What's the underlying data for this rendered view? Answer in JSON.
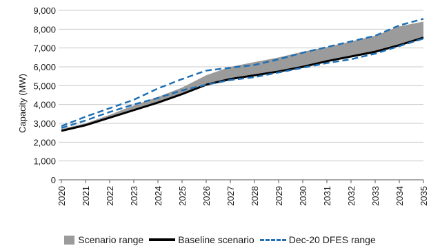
{
  "chart_data": {
    "type": "area",
    "x": [
      "2020",
      "2021",
      "2022",
      "2023",
      "2024",
      "2025",
      "2026",
      "2027",
      "2028",
      "2029",
      "2030",
      "2031",
      "2032",
      "2033",
      "2034",
      "2035"
    ],
    "ylabel": "Capacity (MW)",
    "ylim": [
      0,
      9000
    ],
    "yticks": [
      0,
      1000,
      2000,
      3000,
      4000,
      5000,
      6000,
      7000,
      8000,
      9000
    ],
    "ytick_labels": [
      "0",
      "1,000",
      "2,000",
      "3,000",
      "4,000",
      "5,000",
      "6,000",
      "7,000",
      "8,000",
      "9,000"
    ],
    "grid": "horizontal",
    "legend_position": "bottom",
    "scenario_range": {
      "name": "Scenario range",
      "color": "#9b9b9b",
      "lower": [
        2600,
        2900,
        3300,
        3700,
        4100,
        4550,
        5050,
        5350,
        5550,
        5750,
        6000,
        6300,
        6550,
        6800,
        7150,
        7550
      ],
      "upper": [
        2700,
        3000,
        3450,
        3950,
        4400,
        4900,
        5550,
        6000,
        6250,
        6500,
        6800,
        7050,
        7350,
        7650,
        8150,
        8400
      ]
    },
    "series": [
      {
        "name": "Baseline scenario",
        "style": "solid",
        "color": "#000000",
        "values": [
          2600,
          2900,
          3300,
          3700,
          4100,
          4550,
          5050,
          5350,
          5550,
          5750,
          6000,
          6300,
          6550,
          6800,
          7150,
          7550
        ]
      },
      {
        "name": "Dec-20 DFES range",
        "style": "dashed",
        "color": "#1f6fb4",
        "bound": "upper",
        "values": [
          2850,
          3350,
          3800,
          4250,
          4850,
          5350,
          5800,
          5950,
          6100,
          6400,
          6750,
          7050,
          7350,
          7650,
          8200,
          8550
        ]
      },
      {
        "name": "Dec-20 DFES range",
        "style": "dashed",
        "color": "#1f6fb4",
        "bound": "lower",
        "values": [
          2750,
          3150,
          3600,
          4000,
          4350,
          4750,
          5050,
          5300,
          5450,
          5700,
          5950,
          6200,
          6400,
          6700,
          7100,
          7500
        ]
      }
    ]
  },
  "legend": {
    "items": [
      {
        "label": "Scenario range"
      },
      {
        "label": "Baseline scenario"
      },
      {
        "label": "Dec-20 DFES range"
      }
    ]
  }
}
